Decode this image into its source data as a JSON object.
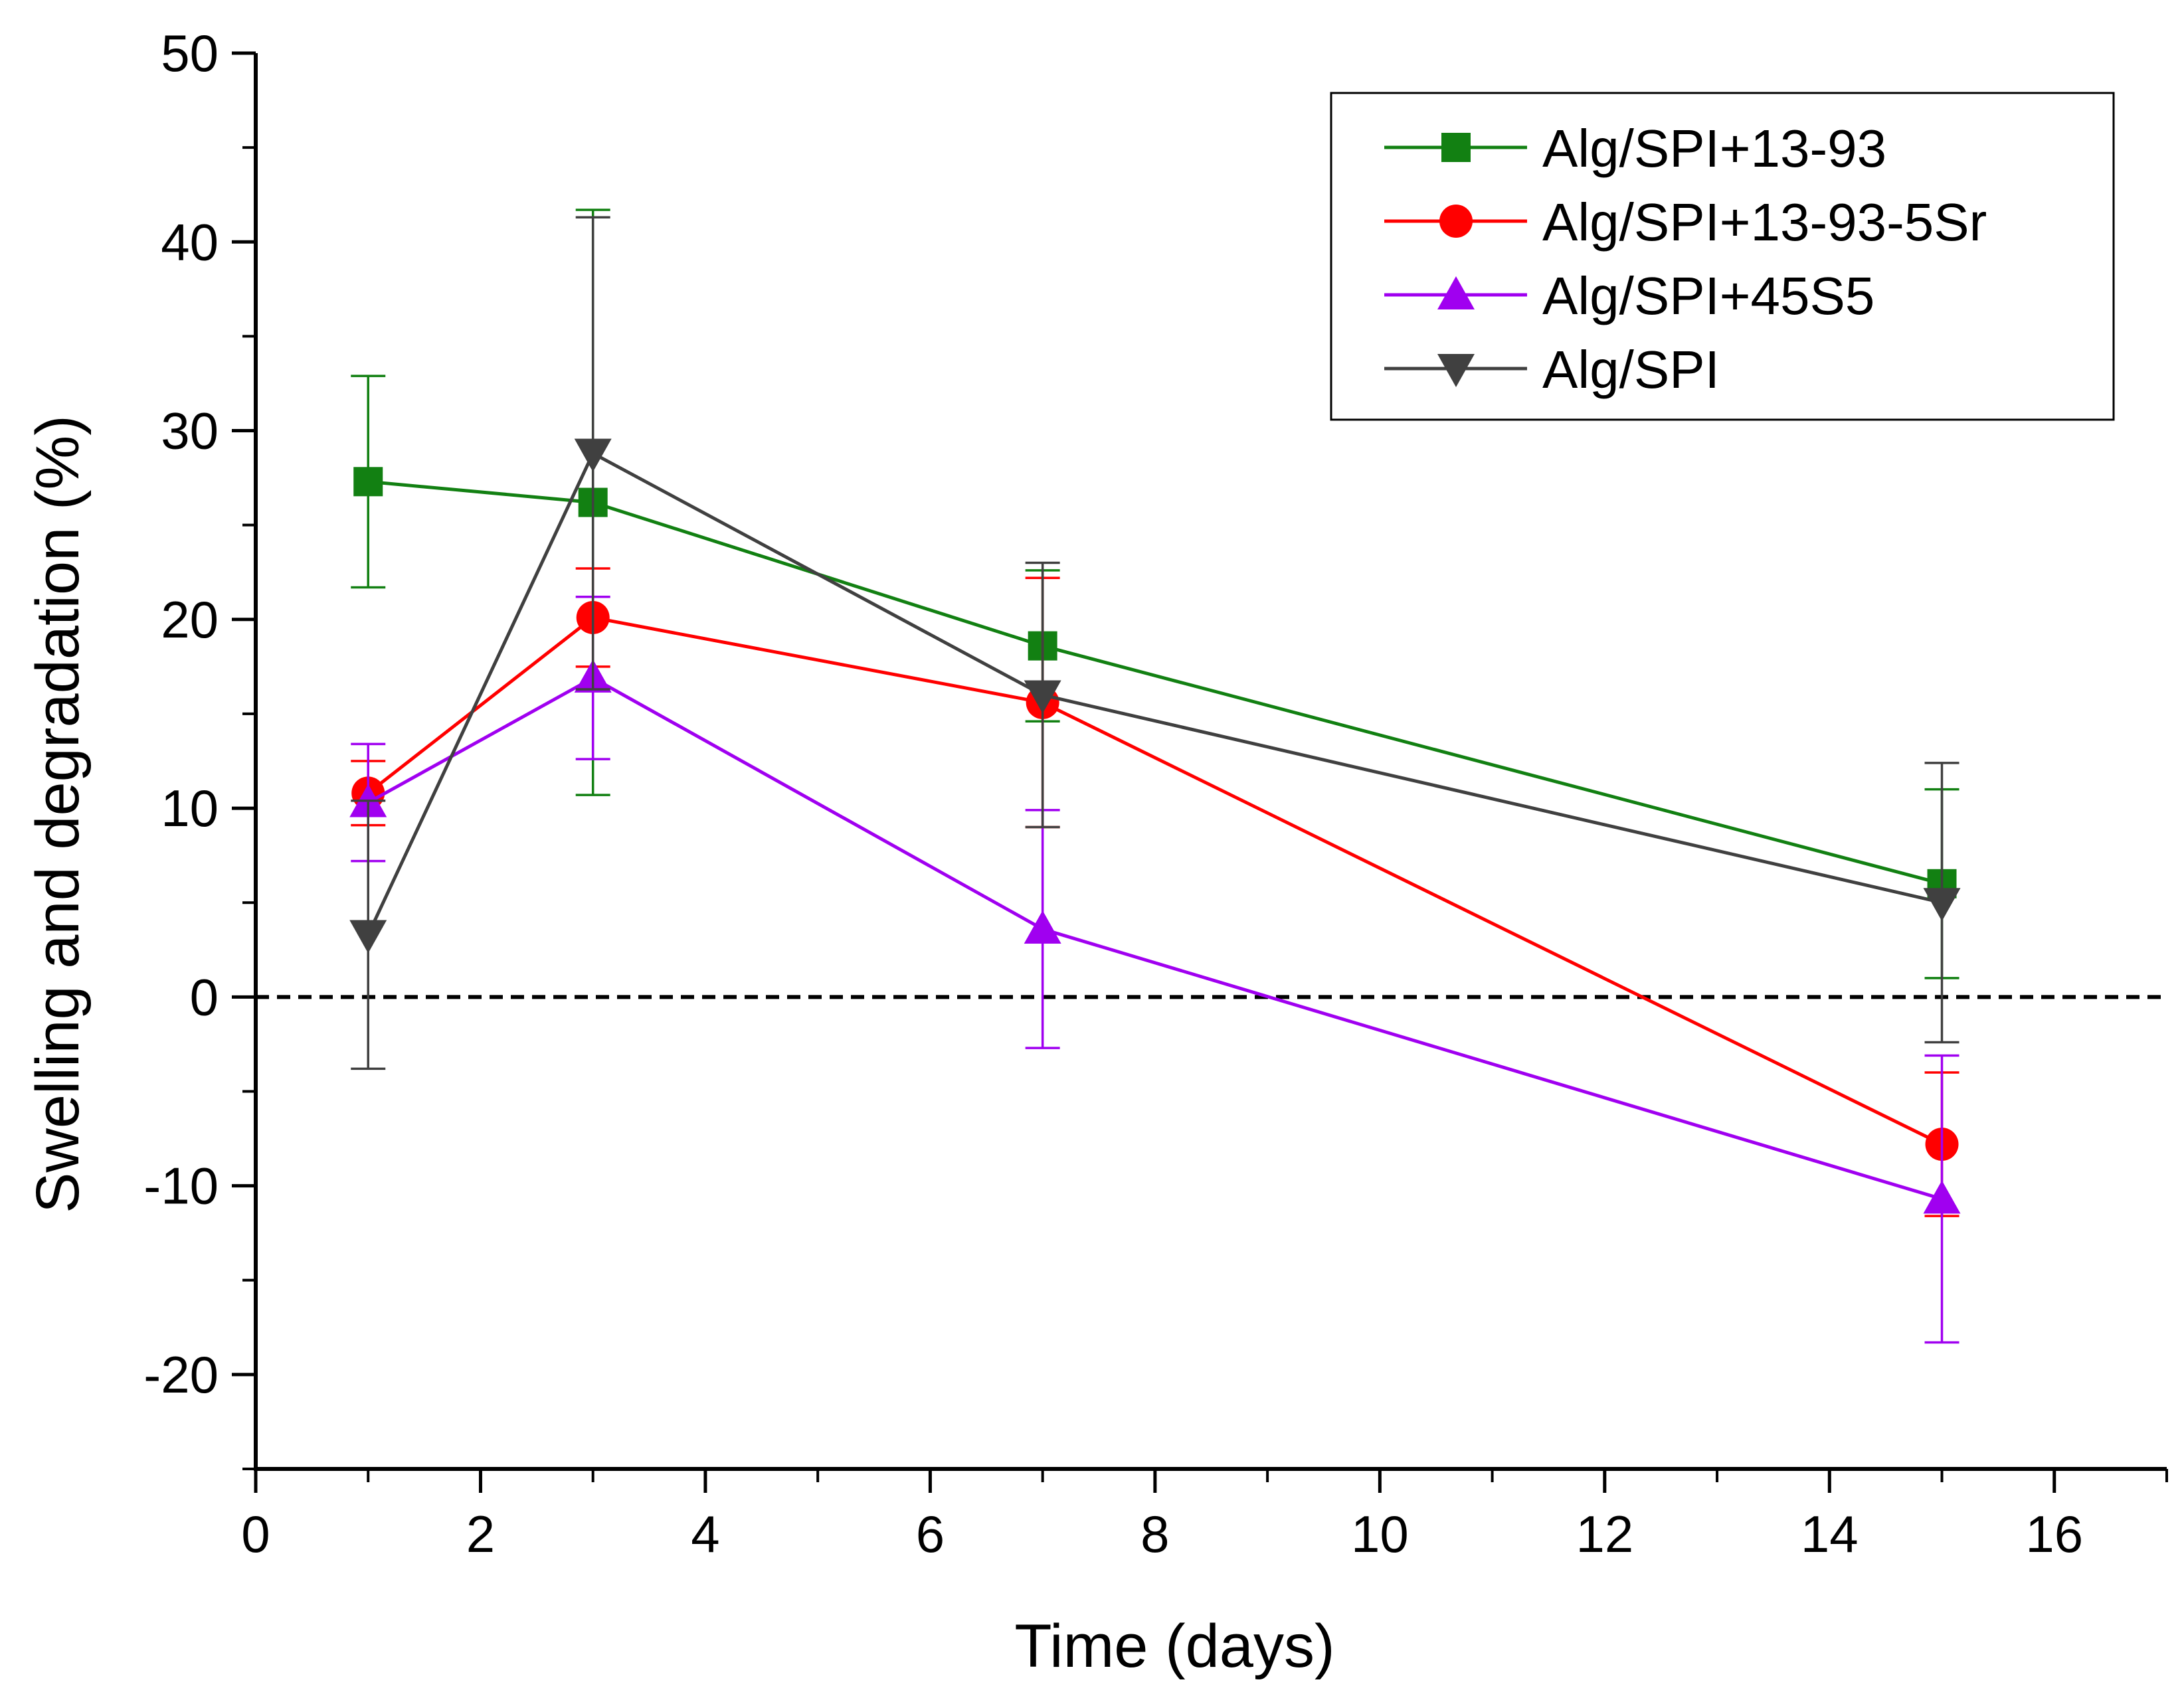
{
  "chart_data": {
    "type": "line",
    "title": "",
    "xlabel": "Time (days)",
    "ylabel": "Swelling and degradation (%)",
    "xlim": [
      0,
      17
    ],
    "ylim": [
      -25,
      50
    ],
    "xticks": [
      0,
      2,
      4,
      6,
      8,
      10,
      12,
      14,
      16
    ],
    "xtick_labels": [
      "0",
      "2",
      "4",
      "6",
      "8",
      "10",
      "12",
      "14",
      "16"
    ],
    "yticks": [
      -20,
      -10,
      0,
      10,
      20,
      30,
      40,
      50
    ],
    "ytick_labels": [
      "-20",
      "-10",
      "0",
      "10",
      "20",
      "30",
      "40",
      "50"
    ],
    "x": [
      1,
      3,
      7,
      15
    ],
    "reference_line": {
      "y": 0,
      "style": "dashed",
      "color": "#000000"
    },
    "legend_position": "top-right",
    "series": [
      {
        "name": "Alg/SPI+13-93",
        "color": "#128012",
        "marker": "square",
        "values": [
          27.3,
          26.2,
          18.6,
          6.0
        ],
        "errors": [
          5.6,
          15.5,
          4.0,
          5.0
        ]
      },
      {
        "name": "Alg/SPI+13-93-5Sr",
        "color": "#ff0000",
        "marker": "circle",
        "values": [
          10.8,
          20.1,
          15.6,
          -7.8
        ],
        "errors": [
          1.7,
          2.6,
          6.6,
          3.8
        ]
      },
      {
        "name": "Alg/SPI+45S5",
        "color": "#a000f0",
        "marker": "triangle-up",
        "values": [
          10.3,
          16.9,
          3.6,
          -10.7
        ],
        "errors": [
          3.1,
          4.3,
          6.3,
          7.6
        ]
      },
      {
        "name": "Alg/SPI",
        "color": "#404040",
        "marker": "triangle-down",
        "values": [
          3.3,
          28.8,
          16.0,
          5.0
        ],
        "errors": [
          7.1,
          12.5,
          7.0,
          7.4
        ]
      }
    ]
  }
}
